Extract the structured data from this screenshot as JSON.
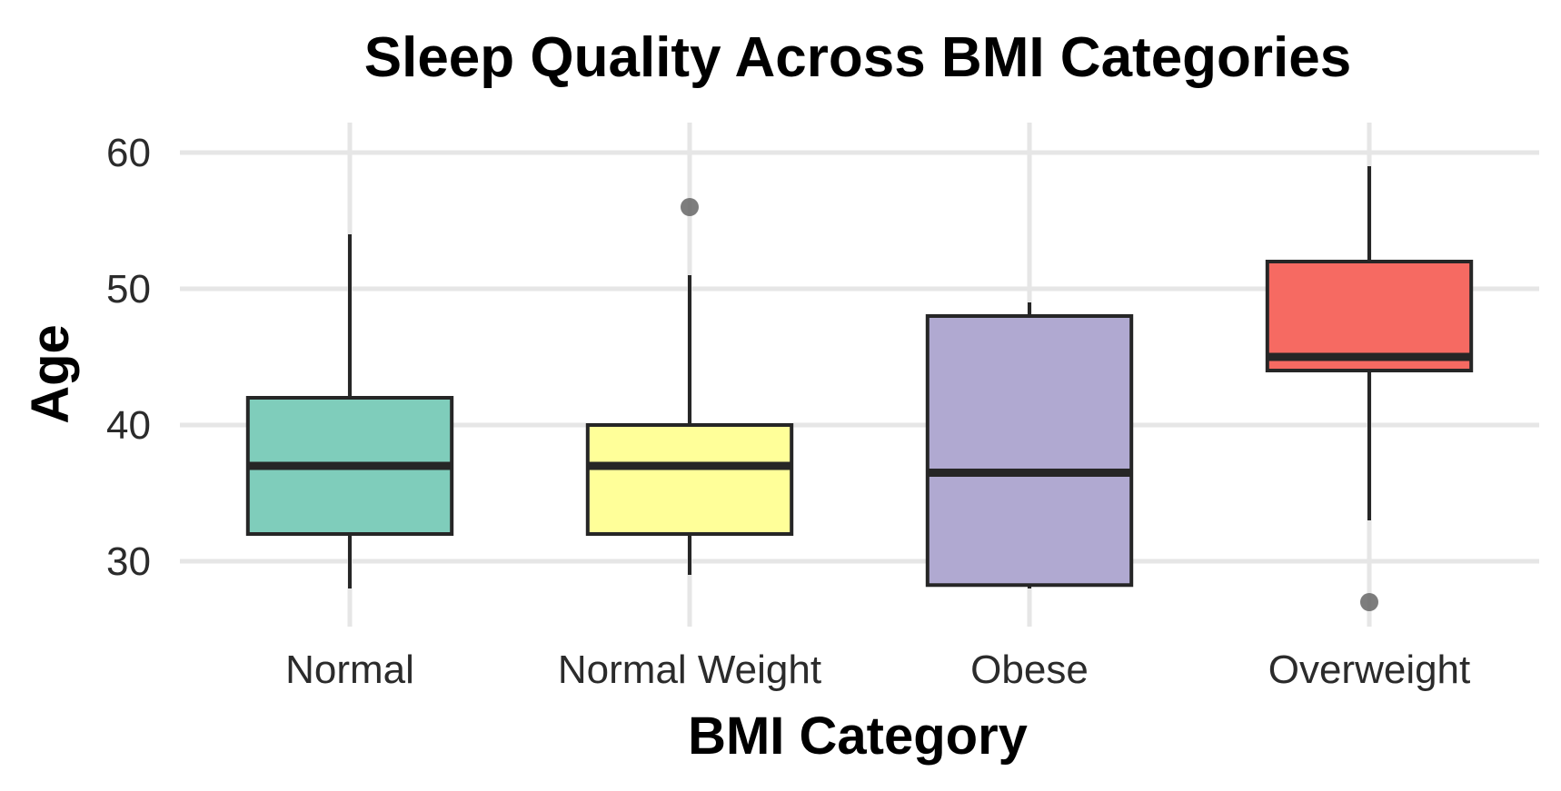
{
  "chart_data": {
    "type": "boxplot",
    "title": "Sleep Quality Across BMI Categories",
    "xlabel": "BMI Category",
    "ylabel": "Age",
    "categories": [
      "Normal",
      "Normal Weight",
      "Obese",
      "Overweight"
    ],
    "ylim": [
      25.2,
      62.2
    ],
    "yticks": [
      30,
      40,
      50,
      60
    ],
    "grid": true,
    "legend": "none",
    "boxes": [
      {
        "category": "Normal",
        "whisker_low": 28,
        "q1": 32,
        "median": 37,
        "q3": 42,
        "whisker_high": 54,
        "outliers": [],
        "color": "#7fcdbb"
      },
      {
        "category": "Normal Weight",
        "whisker_low": 29,
        "q1": 32,
        "median": 37,
        "q3": 40,
        "whisker_high": 51,
        "outliers": [
          56
        ],
        "color": "#ffff99"
      },
      {
        "category": "Obese",
        "whisker_low": 28,
        "q1": 28.25,
        "median": 36.5,
        "q3": 48,
        "whisker_high": 49,
        "outliers": [],
        "color": "#b0a9d1"
      },
      {
        "category": "Overweight",
        "whisker_low": 33,
        "q1": 44,
        "median": 45,
        "q3": 52,
        "whisker_high": 59,
        "outliers": [
          27
        ],
        "color": "#f66a62"
      }
    ]
  }
}
